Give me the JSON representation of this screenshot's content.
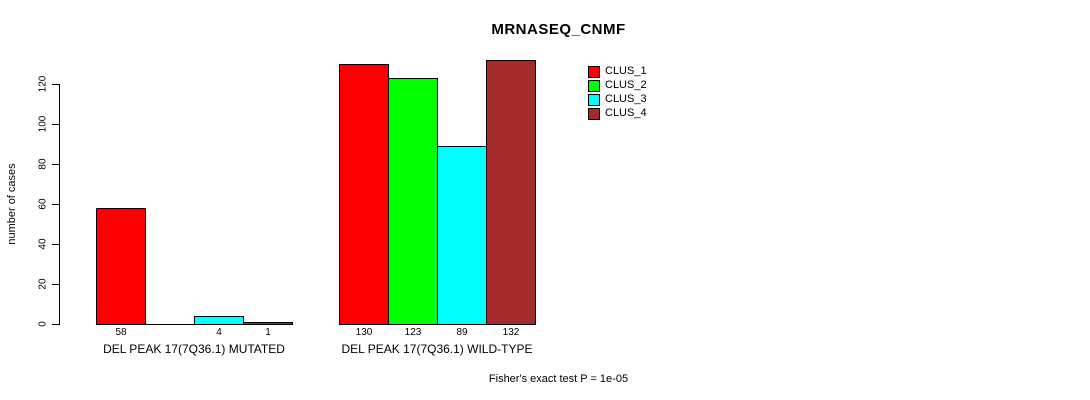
{
  "chart_data": {
    "type": "bar",
    "title": "MRNASEQ_CNMF",
    "ylabel": "number of cases",
    "ylim": [
      0,
      140
    ],
    "yticks": [
      0,
      20,
      40,
      60,
      80,
      100,
      120
    ],
    "grid": false,
    "legend_position": "top-right",
    "categories": [
      "DEL PEAK 17(7Q36.1) MUTATED",
      "DEL PEAK 17(7Q36.1) WILD-TYPE"
    ],
    "series": [
      {
        "name": "CLUS_1",
        "color": "#ff0000",
        "values": [
          58,
          130
        ]
      },
      {
        "name": "CLUS_2",
        "color": "#00ff00",
        "values": [
          0,
          123
        ]
      },
      {
        "name": "CLUS_3",
        "color": "#00ffff",
        "values": [
          4,
          89
        ]
      },
      {
        "name": "CLUS_4",
        "color": "#a52a2a",
        "values": [
          1,
          132
        ]
      }
    ],
    "bar_value_labels": [
      [
        "58",
        "",
        "4",
        "1"
      ],
      [
        "130",
        "123",
        "89",
        "132"
      ]
    ],
    "annotation": "Fisher's exact test P = 1e-05"
  }
}
